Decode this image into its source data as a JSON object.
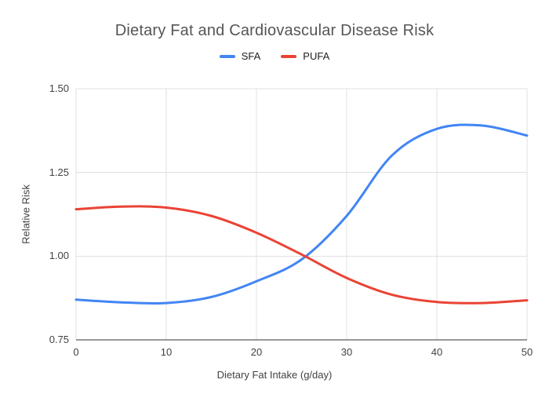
{
  "chart_data": {
    "type": "line",
    "title": "Dietary Fat and Cardiovascular Disease Risk",
    "xlabel": "Dietary Fat Intake (g/day)",
    "ylabel": "Relative Risk",
    "xlim": [
      0,
      50
    ],
    "ylim": [
      0.75,
      1.5
    ],
    "x_ticks": [
      0,
      10,
      20,
      30,
      40,
      50
    ],
    "y_ticks": [
      0.75,
      1.0,
      1.25,
      1.5
    ],
    "grid": true,
    "legend_position": "top",
    "x": [
      0,
      5,
      10,
      15,
      20,
      25,
      30,
      35,
      40,
      45,
      50
    ],
    "series": [
      {
        "name": "SFA",
        "color": "#4285f4",
        "values": [
          0.87,
          0.862,
          0.86,
          0.878,
          0.925,
          0.99,
          1.12,
          1.3,
          1.38,
          1.39,
          1.36
        ]
      },
      {
        "name": "PUFA",
        "color": "#ea4335",
        "values": [
          1.14,
          1.148,
          1.145,
          1.12,
          1.07,
          1.005,
          0.935,
          0.885,
          0.863,
          0.86,
          0.868
        ]
      }
    ],
    "colors": {
      "grid": "#e0e0e0",
      "axis": "#333333",
      "tick_text": "#424242",
      "title_text": "#555555",
      "legend_text": "#212121",
      "background": "#ffffff"
    }
  }
}
